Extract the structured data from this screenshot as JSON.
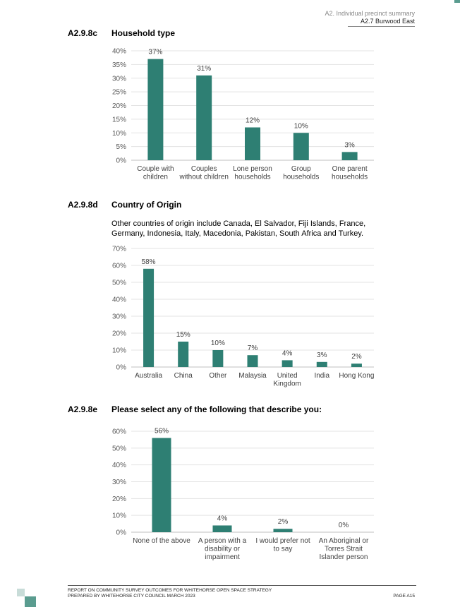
{
  "header": {
    "line1": "A2. Individual precinct summary",
    "line2": "A2.7 Burwood East"
  },
  "sections": [
    {
      "num": "A2.9.8c",
      "title": "Household type"
    },
    {
      "num": "A2.9.8d",
      "title": "Country of Origin",
      "description": "Other countries of origin include Canada, El Salvador, Fiji Islands, France, Germany, Indonesia, Italy, Macedonia, Pakistan, South Africa and Turkey."
    },
    {
      "num": "A2.9.8e",
      "title": "Please select any of the following that describe you:"
    }
  ],
  "chart_data": [
    {
      "type": "bar",
      "categories": [
        "Couple with children",
        "Couples without children",
        "Lone person households",
        "Group households",
        "One parent households"
      ],
      "category_lines": [
        [
          "Couple with",
          "children"
        ],
        [
          "Couples",
          "without children"
        ],
        [
          "Lone person",
          "households"
        ],
        [
          "Group",
          "households"
        ],
        [
          "One parent",
          "households"
        ]
      ],
      "values": [
        37,
        31,
        12,
        10,
        3
      ],
      "data_labels": [
        "37%",
        "31%",
        "12%",
        "10%",
        "3%"
      ],
      "ylim": [
        0,
        40
      ],
      "yticks": [
        "0%",
        "5%",
        "10%",
        "15%",
        "20%",
        "25%",
        "30%",
        "35%",
        "40%"
      ],
      "grid": true,
      "color": "#2e7f73"
    },
    {
      "type": "bar",
      "categories": [
        "Australia",
        "China",
        "Other",
        "Malaysia",
        "United Kingdom",
        "India",
        "Hong Kong"
      ],
      "category_lines": [
        [
          "Australia"
        ],
        [
          "China"
        ],
        [
          "Other"
        ],
        [
          "Malaysia"
        ],
        [
          "United",
          "Kingdom"
        ],
        [
          "India"
        ],
        [
          "Hong Kong"
        ]
      ],
      "values": [
        58,
        15,
        10,
        7,
        4,
        3,
        2
      ],
      "data_labels": [
        "58%",
        "15%",
        "10%",
        "7%",
        "4%",
        "3%",
        "2%"
      ],
      "ylim": [
        0,
        70
      ],
      "yticks": [
        "0%",
        "10%",
        "20%",
        "30%",
        "40%",
        "50%",
        "60%",
        "70%"
      ],
      "grid": true,
      "color": "#2e7f73"
    },
    {
      "type": "bar",
      "categories": [
        "None of the above",
        "A person with a disability or impairment",
        "I would prefer not to say",
        "An Aboriginal or Torres Strait Islander person"
      ],
      "category_lines": [
        [
          "None of the above"
        ],
        [
          "A person with a",
          "disability or",
          "impairment"
        ],
        [
          "I would prefer not",
          "to say"
        ],
        [
          "An Aboriginal or",
          "Torres Strait",
          "Islander person"
        ]
      ],
      "values": [
        56,
        4,
        2,
        0
      ],
      "data_labels": [
        "56%",
        "4%",
        "2%",
        "0%"
      ],
      "ylim": [
        0,
        60
      ],
      "yticks": [
        "0%",
        "10%",
        "20%",
        "30%",
        "40%",
        "50%",
        "60%"
      ],
      "grid": true,
      "color": "#2e7f73"
    }
  ],
  "footer": {
    "line1": "REPORT ON COMMUNITY SURVEY OUTCOMES FOR WHITEHORSE OPEN SPACE STRATEGY",
    "line2": "PREPARED BY WHITEHORSE CITY COUNCIL MARCH 2023",
    "page": "PAGE A15"
  }
}
